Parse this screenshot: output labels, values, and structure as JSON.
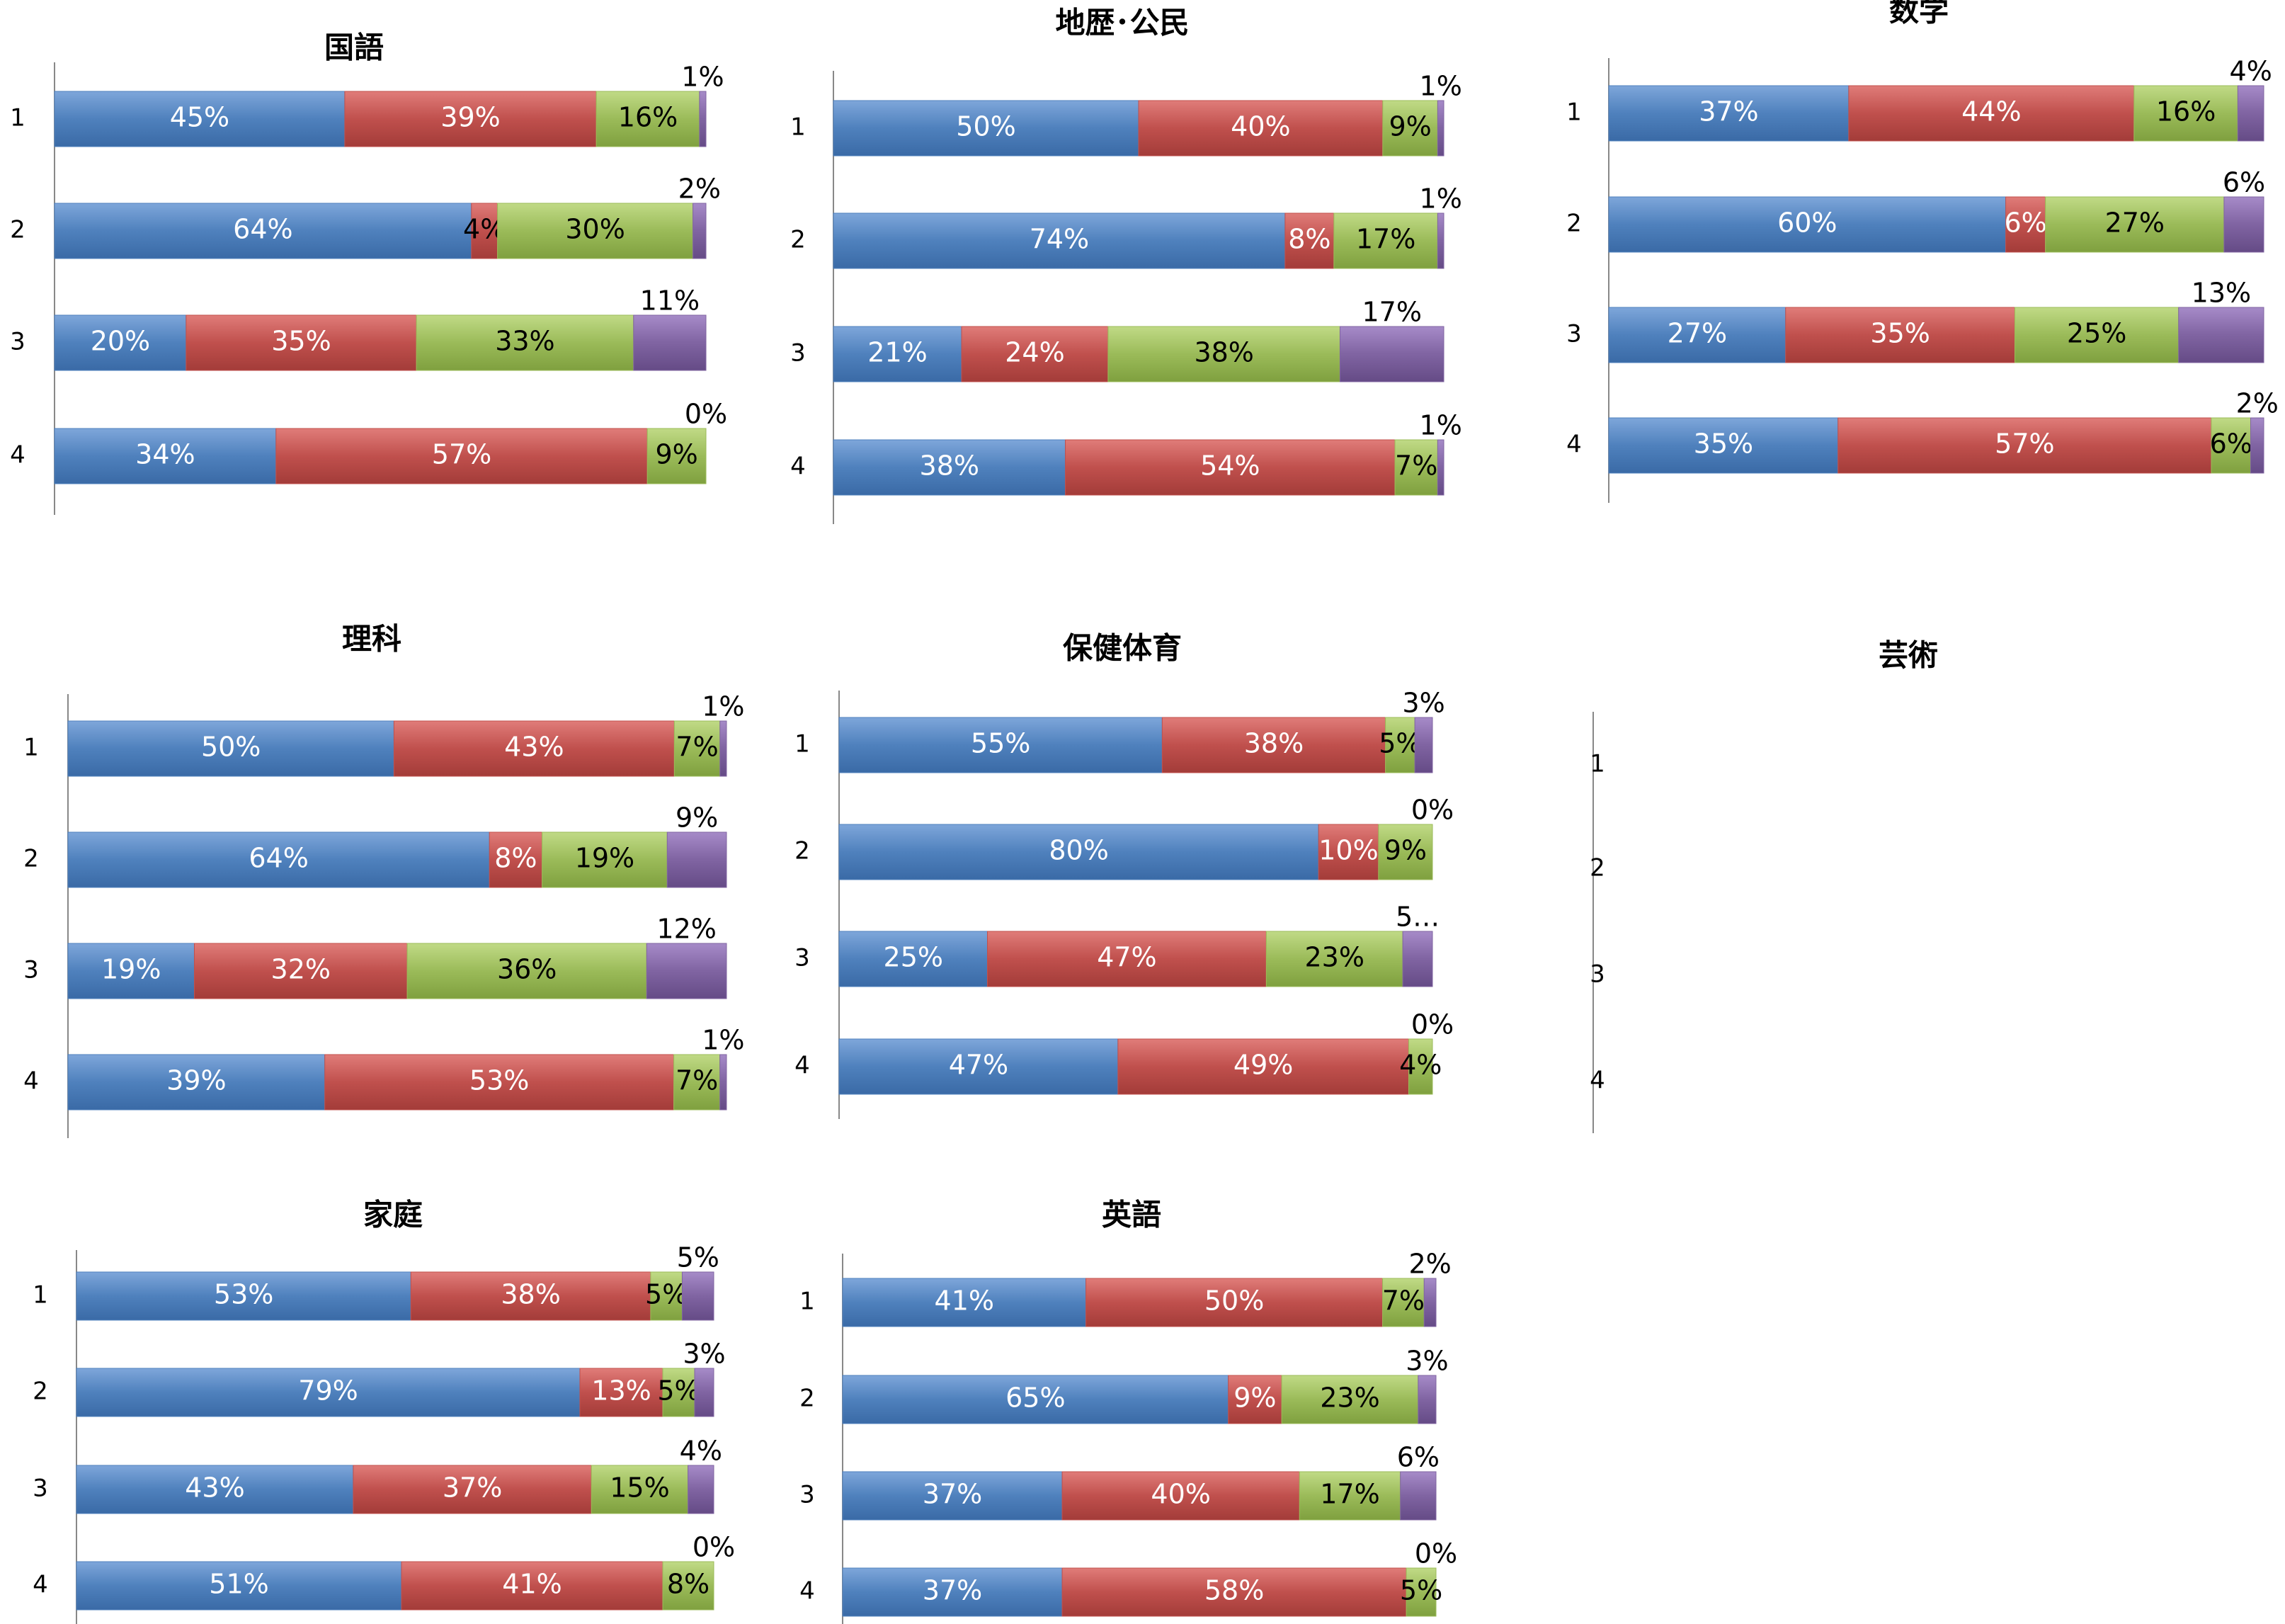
{
  "colors": {
    "blue": "#4F81BD",
    "red": "#C0504D",
    "green": "#9BBB59",
    "purple": "#8064A2"
  },
  "chart_data": [
    {
      "type": "bar",
      "orientation": "horizontal",
      "stacked": true,
      "title": "国語",
      "categories": [
        "1",
        "2",
        "3",
        "4"
      ],
      "series": [
        {
          "color": "blue",
          "values": [
            45,
            64,
            20,
            34
          ],
          "labels": [
            "45%",
            "64%",
            "20%",
            "34%"
          ]
        },
        {
          "color": "red",
          "values": [
            39,
            4,
            35,
            57
          ],
          "labels": [
            "39%",
            "4%",
            "35%",
            "57%"
          ]
        },
        {
          "color": "green",
          "values": [
            16,
            30,
            33,
            9
          ],
          "labels": [
            "16%",
            "30%",
            "33%",
            "9%"
          ]
        },
        {
          "color": "purple",
          "values": [
            1,
            2,
            11,
            0
          ],
          "labels": [
            "1%",
            "2%",
            "11%",
            "0%"
          ]
        }
      ]
    },
    {
      "type": "bar",
      "orientation": "horizontal",
      "stacked": true,
      "title": "地歴･公民",
      "categories": [
        "1",
        "2",
        "3",
        "4"
      ],
      "series": [
        {
          "color": "blue",
          "values": [
            50,
            74,
            21,
            38
          ],
          "labels": [
            "50%",
            "74%",
            "21%",
            "38%"
          ]
        },
        {
          "color": "red",
          "values": [
            40,
            8,
            24,
            54
          ],
          "labels": [
            "40%",
            "8%",
            "24%",
            "54%"
          ]
        },
        {
          "color": "green",
          "values": [
            9,
            17,
            38,
            7
          ],
          "labels": [
            "9%",
            "17%",
            "38%",
            "7%"
          ]
        },
        {
          "color": "purple",
          "values": [
            1,
            1,
            17,
            1
          ],
          "labels": [
            "1%",
            "1%",
            "17%",
            "1%"
          ]
        }
      ]
    },
    {
      "type": "bar",
      "orientation": "horizontal",
      "stacked": true,
      "title": "数学",
      "categories": [
        "1",
        "2",
        "3",
        "4"
      ],
      "series": [
        {
          "color": "blue",
          "values": [
            37,
            60,
            27,
            35
          ],
          "labels": [
            "37%",
            "60%",
            "27%",
            "35%"
          ]
        },
        {
          "color": "red",
          "values": [
            44,
            6,
            35,
            57
          ],
          "labels": [
            "44%",
            "6%",
            "35%",
            "57%"
          ]
        },
        {
          "color": "green",
          "values": [
            16,
            27,
            25,
            6
          ],
          "labels": [
            "16%",
            "27%",
            "25%",
            "6%"
          ]
        },
        {
          "color": "purple",
          "values": [
            4,
            6,
            13,
            2
          ],
          "labels": [
            "4%",
            "6%",
            "13%",
            "2%"
          ]
        }
      ]
    },
    {
      "type": "bar",
      "orientation": "horizontal",
      "stacked": true,
      "title": "理科",
      "categories": [
        "1",
        "2",
        "3",
        "4"
      ],
      "series": [
        {
          "color": "blue",
          "values": [
            50,
            64,
            19,
            39
          ],
          "labels": [
            "50%",
            "64%",
            "19%",
            "39%"
          ]
        },
        {
          "color": "red",
          "values": [
            43,
            8,
            32,
            53
          ],
          "labels": [
            "43%",
            "8%",
            "32%",
            "53%"
          ]
        },
        {
          "color": "green",
          "values": [
            7,
            19,
            36,
            7
          ],
          "labels": [
            "7%",
            "19%",
            "36%",
            "7%"
          ]
        },
        {
          "color": "purple",
          "values": [
            1,
            9,
            12,
            1
          ],
          "labels": [
            "1%",
            "9%",
            "12%",
            "1%"
          ]
        }
      ]
    },
    {
      "type": "bar",
      "orientation": "horizontal",
      "stacked": true,
      "title": "保健体育",
      "categories": [
        "1",
        "2",
        "3",
        "4"
      ],
      "series": [
        {
          "color": "blue",
          "values": [
            55,
            80,
            25,
            47
          ],
          "labels": [
            "55%",
            "80%",
            "25%",
            "47%"
          ]
        },
        {
          "color": "red",
          "values": [
            38,
            10,
            47,
            49
          ],
          "labels": [
            "38%",
            "10%",
            "47%",
            "49%"
          ]
        },
        {
          "color": "green",
          "values": [
            5,
            9,
            23,
            4
          ],
          "labels": [
            "5%",
            "9%",
            "23%",
            "4%"
          ]
        },
        {
          "color": "purple",
          "values": [
            3,
            0,
            5,
            0
          ],
          "labels": [
            "3%",
            "0%",
            "5…",
            "0%"
          ]
        }
      ]
    },
    {
      "type": "bar",
      "orientation": "horizontal",
      "stacked": true,
      "title": "芸術",
      "categories": [
        "1",
        "2",
        "3",
        "4"
      ],
      "series": []
    },
    {
      "type": "bar",
      "orientation": "horizontal",
      "stacked": true,
      "title": "家庭",
      "categories": [
        "1",
        "2",
        "3",
        "4"
      ],
      "series": [
        {
          "color": "blue",
          "values": [
            53,
            79,
            43,
            51
          ],
          "labels": [
            "53%",
            "79%",
            "43%",
            "51%"
          ]
        },
        {
          "color": "red",
          "values": [
            38,
            13,
            37,
            41
          ],
          "labels": [
            "38%",
            "13%",
            "37%",
            "41%"
          ]
        },
        {
          "color": "green",
          "values": [
            5,
            5,
            15,
            8
          ],
          "labels": [
            "5%",
            "5%",
            "15%",
            "8%"
          ]
        },
        {
          "color": "purple",
          "values": [
            5,
            3,
            4,
            0
          ],
          "labels": [
            "5%",
            "3%",
            "4%",
            "0%"
          ]
        }
      ]
    },
    {
      "type": "bar",
      "orientation": "horizontal",
      "stacked": true,
      "title": "英語",
      "categories": [
        "1",
        "2",
        "3",
        "4"
      ],
      "series": [
        {
          "color": "blue",
          "values": [
            41,
            65,
            37,
            37
          ],
          "labels": [
            "41%",
            "65%",
            "37%",
            "37%"
          ]
        },
        {
          "color": "red",
          "values": [
            50,
            9,
            40,
            58
          ],
          "labels": [
            "50%",
            "9%",
            "40%",
            "58%"
          ]
        },
        {
          "color": "green",
          "values": [
            7,
            23,
            17,
            5
          ],
          "labels": [
            "7%",
            "23%",
            "17%",
            "5%"
          ]
        },
        {
          "color": "purple",
          "values": [
            2,
            3,
            6,
            0
          ],
          "labels": [
            "2%",
            "3%",
            "6%",
            "0%"
          ]
        }
      ]
    }
  ]
}
